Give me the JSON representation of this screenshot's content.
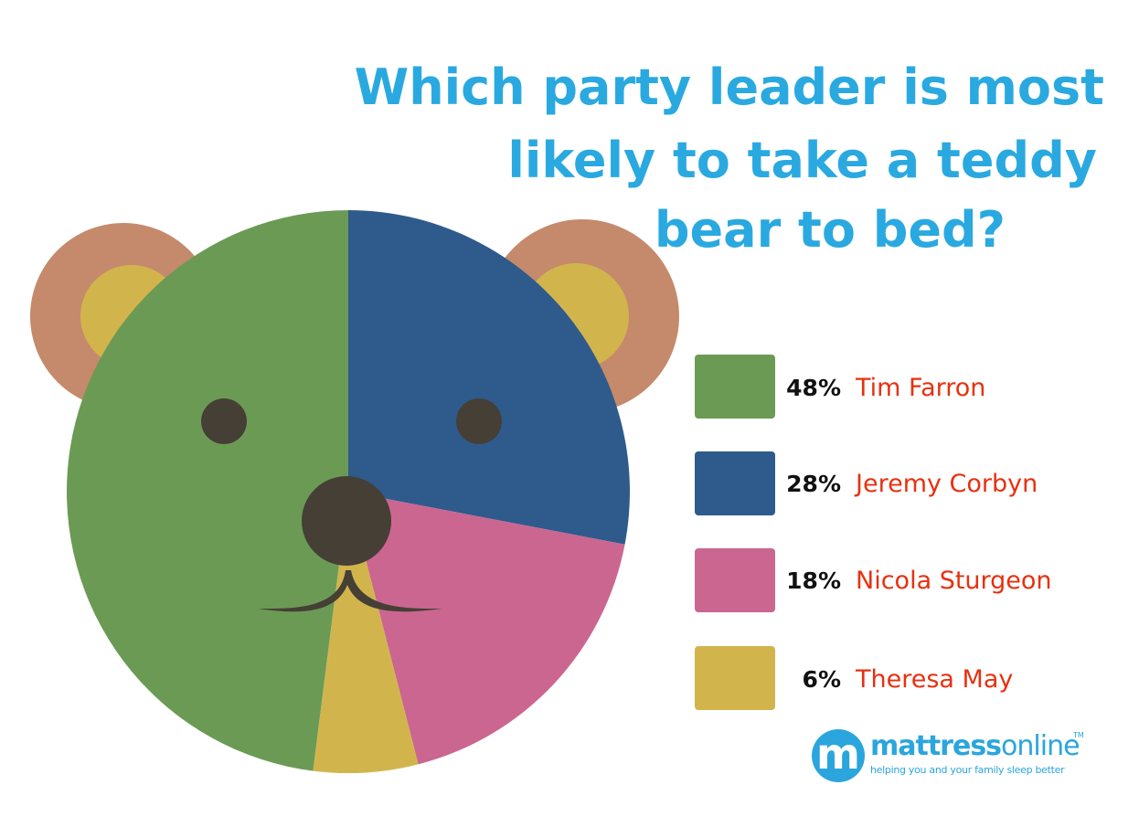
{
  "chart_data": {
    "type": "pie",
    "title": "Which party leader is most likely to take a teddy bear to bed?",
    "title_lines": [
      "Which party leader is most",
      "likely to take a teddy",
      "bear to bed?"
    ],
    "slices": [
      {
        "label": "Tim Farron",
        "value": 48,
        "value_label": "48%",
        "color": "#6b9a55"
      },
      {
        "label": "Jeremy Corbyn",
        "value": 28,
        "value_label": "28%",
        "color": "#2f5a8c"
      },
      {
        "label": "Nicola Sturgeon",
        "value": 18,
        "value_label": "18%",
        "color": "#cb6690"
      },
      {
        "label": "Theresa May",
        "value": 6,
        "value_label": "6%",
        "color": "#d1b54c"
      }
    ],
    "legend_position": "right"
  },
  "colors": {
    "title": "#2aa9e0",
    "ear_outer": "#c48a6b",
    "ear_inner": "#d1b54c",
    "face_features": "#453f36",
    "legend_name": "#e8300f",
    "legend_percent": "#111111",
    "brand": "#2ba5dd"
  },
  "logo": {
    "mark": "m",
    "word_bold": "mattress",
    "word_light": "online",
    "trademark": "TM",
    "tagline": "helping you and your family sleep better"
  }
}
